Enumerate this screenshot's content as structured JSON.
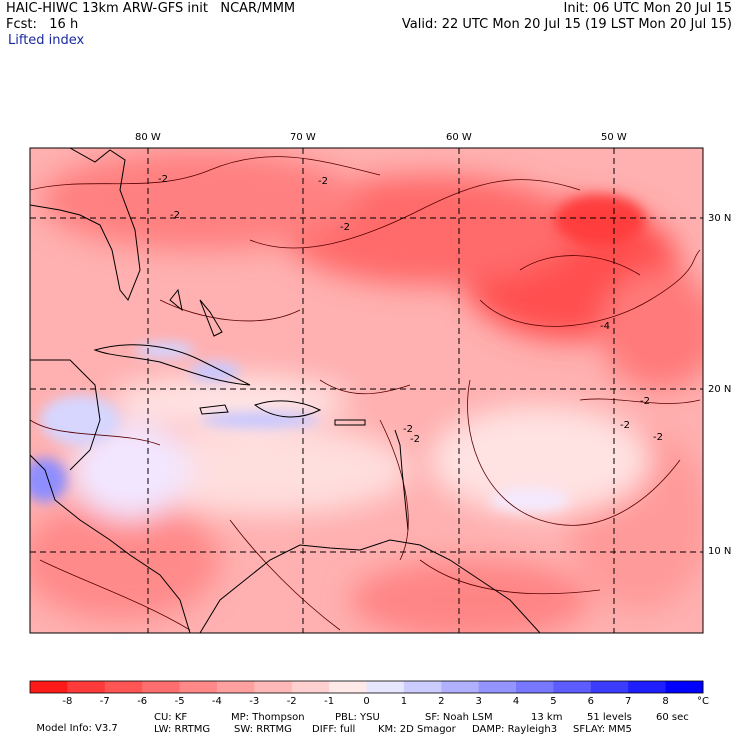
{
  "header": {
    "model_line": "HAIC-HIWC 13km ARW-GFS init   NCAR/MMM",
    "forecast_line": "Fcst:   16 h",
    "init_line": "Init: 06 UTC Mon 20 Jul 15",
    "valid_line": "Valid: 22 UTC Mon 20 Jul 15 (19 LST Mon 20 Jul 15)"
  },
  "field_name": "Lifted index",
  "map": {
    "lon_labels": [
      "80 W",
      "70 W",
      "60 W",
      "50 W"
    ],
    "lat_labels": [
      "30 N",
      "20 N",
      "10 N"
    ],
    "contour_label": "-2",
    "contour_label_alt": "-4"
  },
  "colorbar": {
    "unit": "°C",
    "tick_labels": [
      "-8",
      "-7",
      "-6",
      "-5",
      "-4",
      "-3",
      "-2",
      "-1",
      "0",
      "1",
      "2",
      "3",
      "4",
      "5",
      "6",
      "7",
      "8"
    ],
    "colors": [
      "#ff1a1a",
      "#ff3a3a",
      "#ff5555",
      "#ff6e6e",
      "#ff8888",
      "#ffa0a0",
      "#ffb8b8",
      "#ffd0d0",
      "#ffe8e8",
      "#e6e6ff",
      "#ccccff",
      "#b0b0ff",
      "#9494ff",
      "#7878ff",
      "#5c5cff",
      "#3c3cff",
      "#1e1eff",
      "#0000ff"
    ]
  },
  "footer": {
    "row1": [
      {
        "k": "Model Info: V3.7"
      },
      {
        "k": "CU: KF"
      },
      {
        "k": "MP: Thompson"
      },
      {
        "k": "PBL: YSU"
      },
      {
        "k": "SF: Noah LSM"
      },
      {
        "k": "13 km"
      },
      {
        "k": "51 levels"
      },
      {
        "k": "60 sec"
      }
    ],
    "row2": [
      {
        "k": "LW: RRTMG"
      },
      {
        "k": "SW: RRTMG"
      },
      {
        "k": "DIFF: full"
      },
      {
        "k": "KM: 2D Smagor"
      },
      {
        "k": "DAMP: Rayleigh3"
      },
      {
        "k": "SFLAY: MM5"
      }
    ]
  }
}
